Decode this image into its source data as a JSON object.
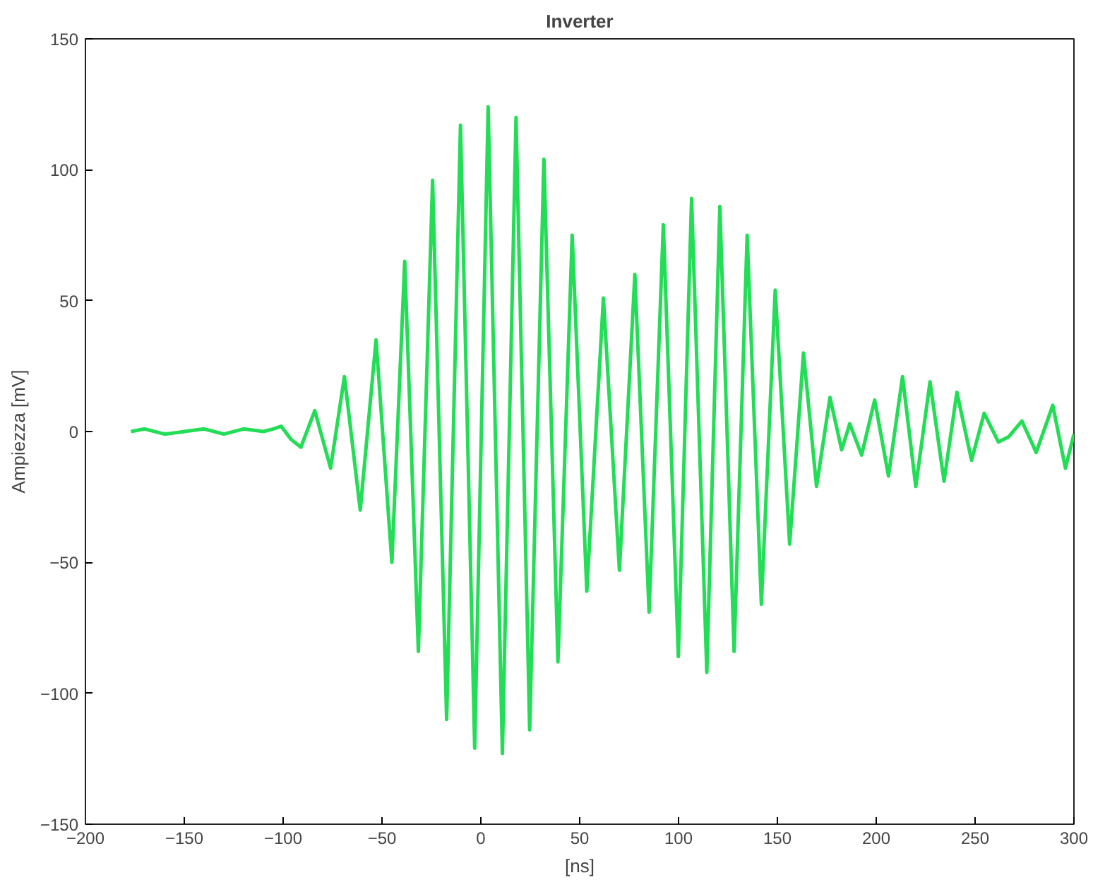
{
  "chart_data": {
    "type": "line",
    "title": "Inverter",
    "xlabel": "[ns]",
    "ylabel": "Ampiezza [mV]",
    "xlim": [
      -200,
      300
    ],
    "ylim": [
      -150,
      150
    ],
    "xticks": [
      -200,
      -150,
      -100,
      -50,
      0,
      50,
      100,
      150,
      200,
      250,
      300
    ],
    "yticks": [
      -150,
      -100,
      -50,
      0,
      50,
      100,
      150
    ],
    "grid": false,
    "marker": "none",
    "line_style": "solid",
    "series": [
      {
        "color": "#22dd55",
        "x": [
          -177,
          -170,
          -160,
          -150,
          -140,
          -130,
          -120,
          -110,
          -105,
          -101,
          -96,
          -91,
          -84,
          -76,
          -69,
          -61,
          -53,
          -45,
          -38.5,
          -31.6,
          -24.4,
          -17.3,
          -10.3,
          -3.1,
          3.7,
          10.9,
          17.8,
          24.7,
          31.9,
          39,
          46.2,
          53.6,
          62,
          70.1,
          77.9,
          85.1,
          92.3,
          99.9,
          106.6,
          114.3,
          120.9,
          128.1,
          134.7,
          141.9,
          148.9,
          156.2,
          163.2,
          169.8,
          176.6,
          182.5,
          186.6,
          192.6,
          199.2,
          206.2,
          213.3,
          220,
          227.2,
          234.3,
          240.8,
          248.2,
          254.6,
          261.8,
          267,
          273.7,
          280.9,
          289.3,
          295.7,
          300
        ],
        "values": [
          0,
          1,
          -1,
          0,
          1,
          -1,
          1,
          0,
          1,
          2,
          -3,
          -6,
          8,
          -14,
          21,
          -30,
          35,
          -50,
          65,
          -84,
          96,
          -110,
          117,
          -121,
          124,
          -123,
          120,
          -114,
          104,
          -88,
          75,
          -61,
          51,
          -53,
          60,
          -69,
          79,
          -86,
          89,
          -92,
          86,
          -84,
          75,
          -66,
          54,
          -43,
          30,
          -21,
          13,
          -7,
          3,
          -9,
          12,
          -17,
          21,
          -21,
          19,
          -19,
          15,
          -11,
          7,
          -4,
          -2,
          4,
          -8,
          10,
          -14,
          -1
        ]
      }
    ]
  }
}
